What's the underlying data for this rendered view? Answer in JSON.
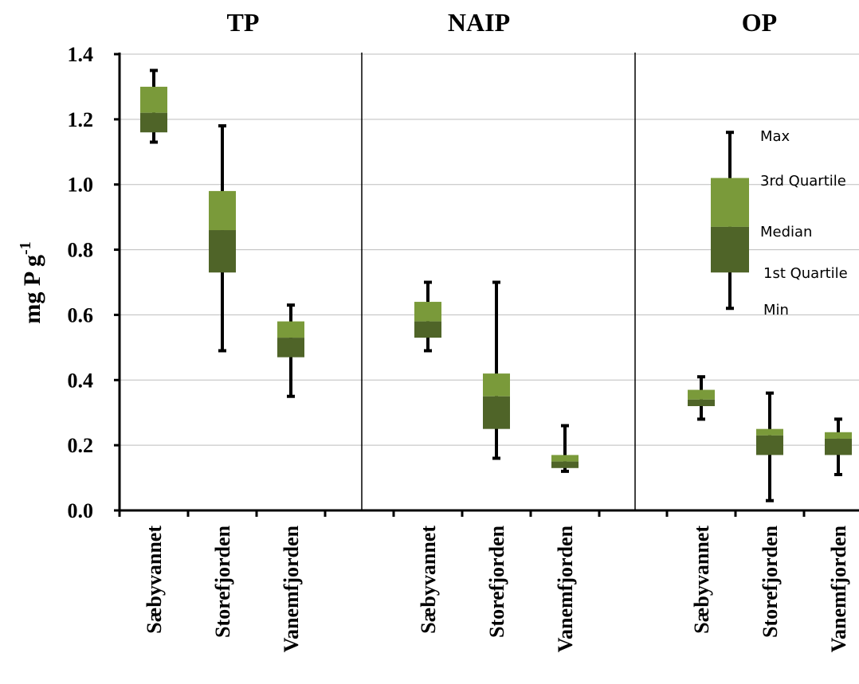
{
  "chart_data": {
    "type": "box",
    "ylabel": "mg P g",
    "ylabel_sup": "-1",
    "ylim": [
      0,
      1.4
    ],
    "yticks": [
      "0.0",
      "0.2",
      "0.4",
      "0.6",
      "0.8",
      "1.0",
      "1.2",
      "1.4"
    ],
    "ytick_values": [
      0,
      0.2,
      0.4,
      0.6,
      0.8,
      1.0,
      1.2,
      1.4
    ],
    "grid": true,
    "panels": [
      {
        "title": "TP",
        "groups": [
          {
            "name": "Sæbyvannet",
            "min": 1.13,
            "q1": 1.16,
            "median": 1.22,
            "q3": 1.3,
            "max": 1.35
          },
          {
            "name": "Storefjorden",
            "min": 0.49,
            "q1": 0.73,
            "median": 0.86,
            "q3": 0.98,
            "max": 1.18
          },
          {
            "name": "Vanemfjorden",
            "min": 0.35,
            "q1": 0.47,
            "median": 0.53,
            "q3": 0.58,
            "max": 0.63
          }
        ]
      },
      {
        "title": "NAIP",
        "groups": [
          {
            "name": "Sæbyvannet",
            "min": 0.49,
            "q1": 0.53,
            "median": 0.58,
            "q3": 0.64,
            "max": 0.7
          },
          {
            "name": "Storefjorden",
            "min": 0.16,
            "q1": 0.25,
            "median": 0.35,
            "q3": 0.42,
            "max": 0.7
          },
          {
            "name": "Vanemfjorden",
            "min": 0.12,
            "q1": 0.13,
            "median": 0.15,
            "q3": 0.17,
            "max": 0.26
          }
        ]
      },
      {
        "title": "OP",
        "groups": [
          {
            "name": "Sæbyvannet",
            "min": 0.28,
            "q1": 0.32,
            "median": 0.34,
            "q3": 0.37,
            "max": 0.41
          },
          {
            "name": "Storefjorden",
            "min": 0.03,
            "q1": 0.17,
            "median": 0.23,
            "q3": 0.25,
            "max": 0.36
          },
          {
            "name": "Vanemfjorden",
            "min": 0.11,
            "q1": 0.17,
            "median": 0.22,
            "q3": 0.24,
            "max": 0.28
          }
        ]
      }
    ],
    "legend": {
      "position": "top-right",
      "labels": {
        "max": "Max",
        "q3": "3rd Quartile",
        "median": "Median",
        "q1": "1st Quartile",
        "min": "Min"
      },
      "example": {
        "min": 0.62,
        "q1": 0.73,
        "median": 0.87,
        "q3": 1.02,
        "max": 1.16
      }
    },
    "colors": {
      "upper_box": "#7a9a3a",
      "lower_box": "#4f6428",
      "whisker": "#000000",
      "grid": "#bdbdbd",
      "axis": "#000000"
    }
  }
}
